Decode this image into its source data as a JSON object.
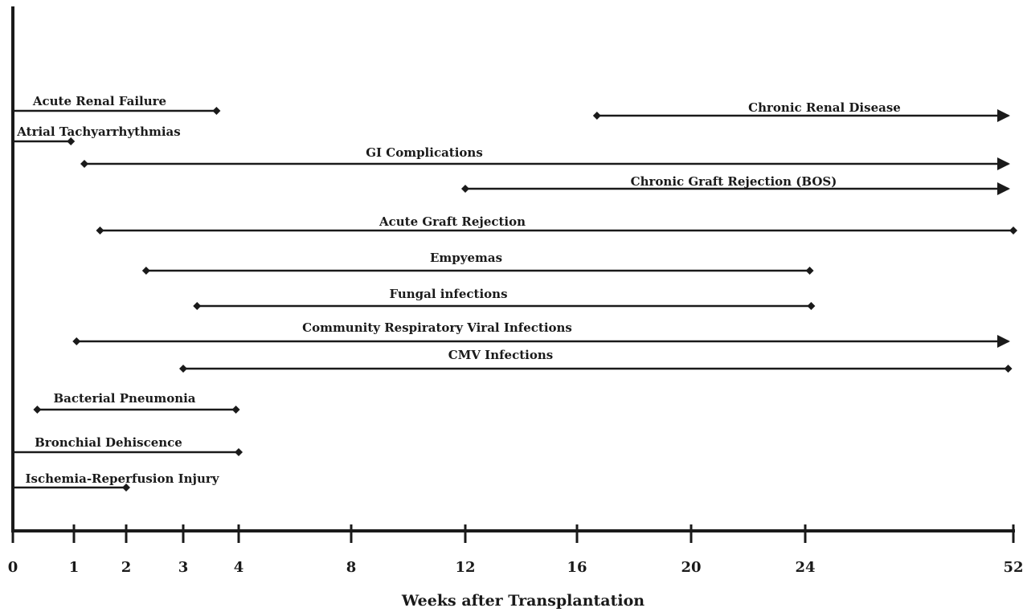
{
  "chart_data": {
    "type": "timeline",
    "xlabel": "Weeks after Transplantation",
    "tick_labels": [
      "0",
      "1",
      "2",
      "3",
      "4",
      "8",
      "12",
      "16",
      "20",
      "24",
      "52"
    ],
    "ticks": [
      0,
      1,
      2,
      3,
      4,
      8,
      12,
      16,
      20,
      24,
      52
    ],
    "x_scale": "piecewise",
    "grid": false,
    "legend": "none",
    "colors": {
      "line": "#1a1a1a",
      "background": "#ffffff"
    },
    "series": [
      {
        "name": "Acute Renal Failure",
        "start": 0,
        "end": 3.6,
        "start_marker": "none",
        "end_marker": "diamond"
      },
      {
        "name": "Chronic Renal Disease",
        "start": 16.7,
        "end": 52,
        "start_marker": "diamond",
        "end_marker": "arrow"
      },
      {
        "name": "Atrial Tachyarrhythmias",
        "start": 0,
        "end": 0.95,
        "start_marker": "none",
        "end_marker": "diamond"
      },
      {
        "name": "GI Complications",
        "start": 1.2,
        "end": 52,
        "start_marker": "diamond",
        "end_marker": "arrow"
      },
      {
        "name": "Chronic Graft Rejection (BOS)",
        "start": 12,
        "end": 52,
        "start_marker": "diamond",
        "end_marker": "arrow"
      },
      {
        "name": "Acute Graft Rejection",
        "start": 1.5,
        "end": 52,
        "start_marker": "diamond",
        "end_marker": "diamond"
      },
      {
        "name": "Empyemas",
        "start": 2.35,
        "end": 24.6,
        "start_marker": "diamond",
        "end_marker": "diamond"
      },
      {
        "name": "Fungal infections",
        "start": 3.25,
        "end": 24.8,
        "start_marker": "diamond",
        "end_marker": "diamond"
      },
      {
        "name": "Community Respiratory Viral Infections",
        "start": 1.05,
        "end": 52,
        "start_marker": "diamond",
        "end_marker": "arrow"
      },
      {
        "name": "CMV Infections",
        "start": 3,
        "end": 51.3,
        "start_marker": "diamond",
        "end_marker": "diamond"
      },
      {
        "name": "Bacterial Pneumonia",
        "start": 0.4,
        "end": 3.95,
        "start_marker": "diamond",
        "end_marker": "diamond"
      },
      {
        "name": "Bronchial Dehiscence",
        "start": 0,
        "end": 4,
        "start_marker": "none",
        "end_marker": "diamond"
      },
      {
        "name": "Ischemia-Reperfusion Injury",
        "start": 0,
        "end": 2,
        "start_marker": "none",
        "end_marker": "diamond"
      }
    ]
  }
}
